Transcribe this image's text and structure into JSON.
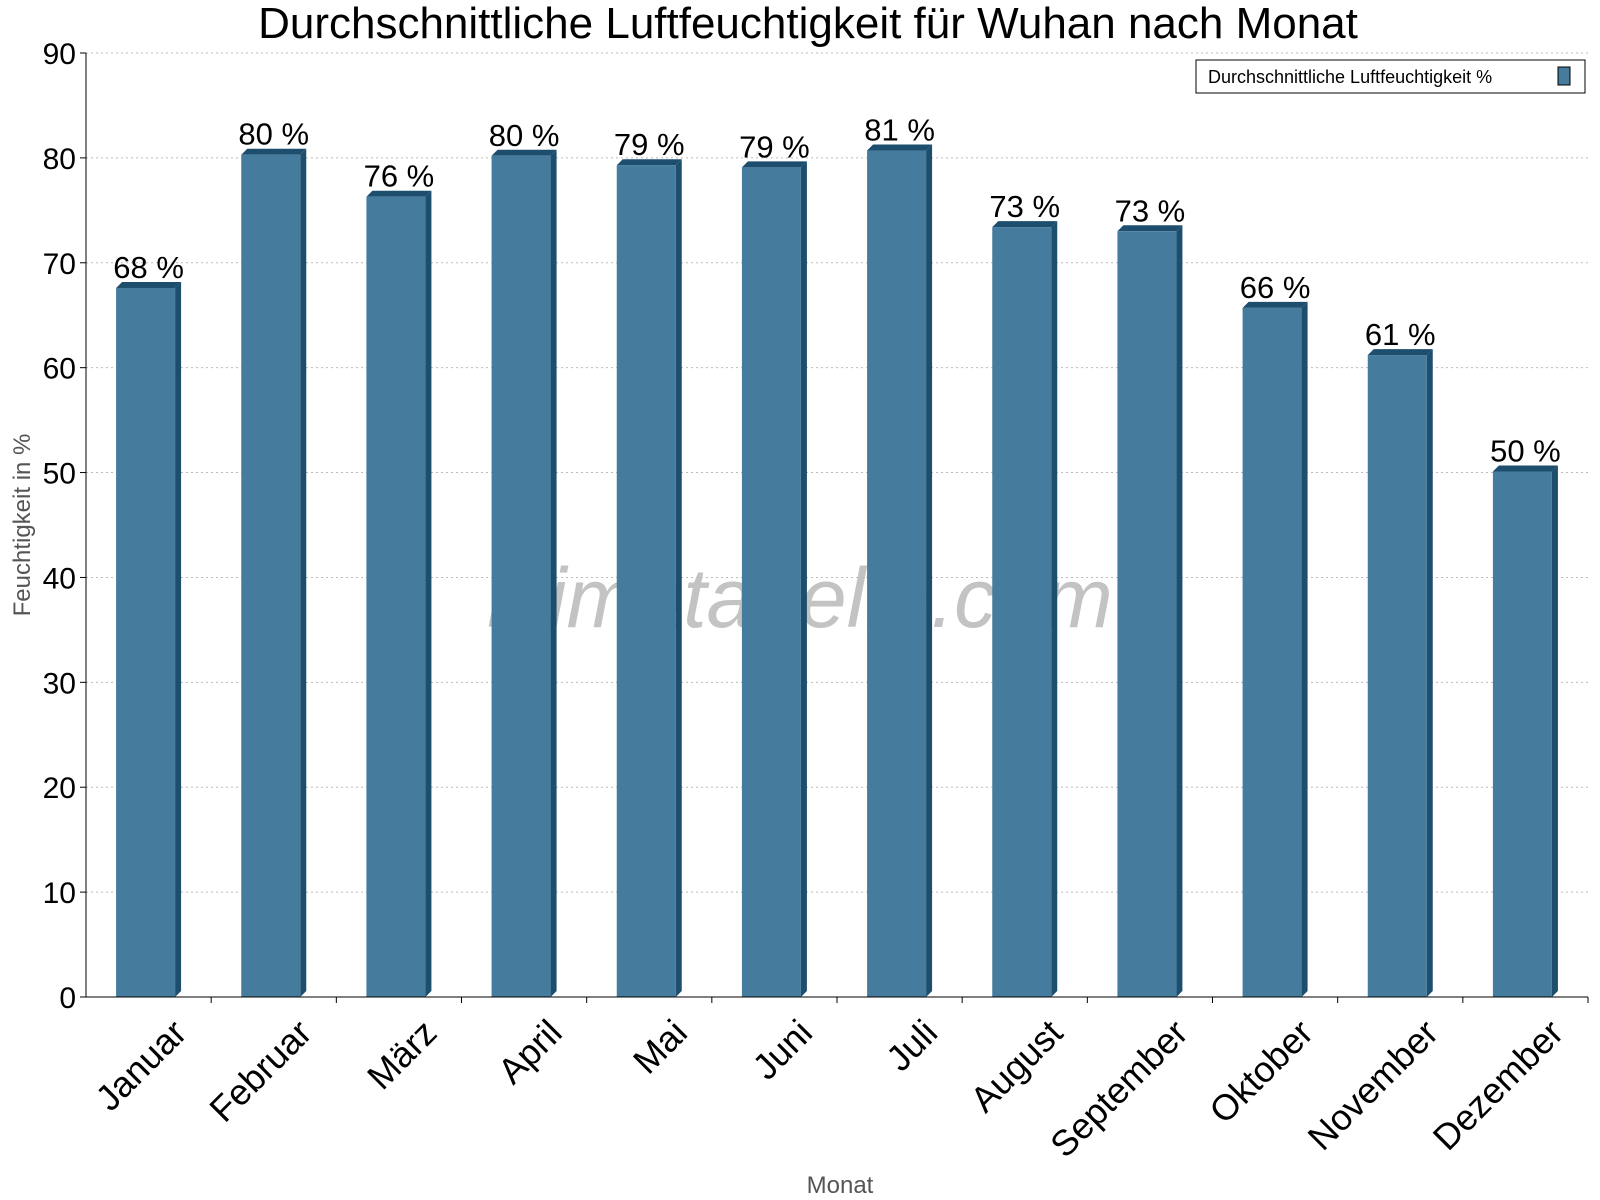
{
  "chart_data": {
    "type": "bar",
    "title": "Durchschnittliche Luftfeuchtigkeit für Wuhan nach Monat",
    "xlabel": "Monat",
    "ylabel": "Feuchtigkeit in %",
    "ylim": [
      0,
      90
    ],
    "yticks": [
      0,
      10,
      20,
      30,
      40,
      50,
      60,
      70,
      80,
      90
    ],
    "grid": true,
    "legend_position": "top-right",
    "categories": [
      "Januar",
      "Februar",
      "März",
      "April",
      "Mai",
      "Juni",
      "Juli",
      "August",
      "September",
      "Oktober",
      "November",
      "Dezember"
    ],
    "series": [
      {
        "name": "Durchschnittliche Luftfeuchtigkeit %",
        "values": [
          67.6,
          80.3,
          76.3,
          80.2,
          79.3,
          79.1,
          80.7,
          73.4,
          73.0,
          65.7,
          61.2,
          50.1
        ],
        "labels": [
          "68 %",
          "80 %",
          "76 %",
          "80 %",
          "79 %",
          "79 %",
          "81 %",
          "73 %",
          "73 %",
          "66 %",
          "61 %",
          "50 %"
        ]
      }
    ],
    "colors": {
      "bar_face": "#457b9d",
      "bar_side": "#1d4e6e",
      "grid": "#bbbbbb"
    }
  },
  "watermark": "klimatabelle.com"
}
